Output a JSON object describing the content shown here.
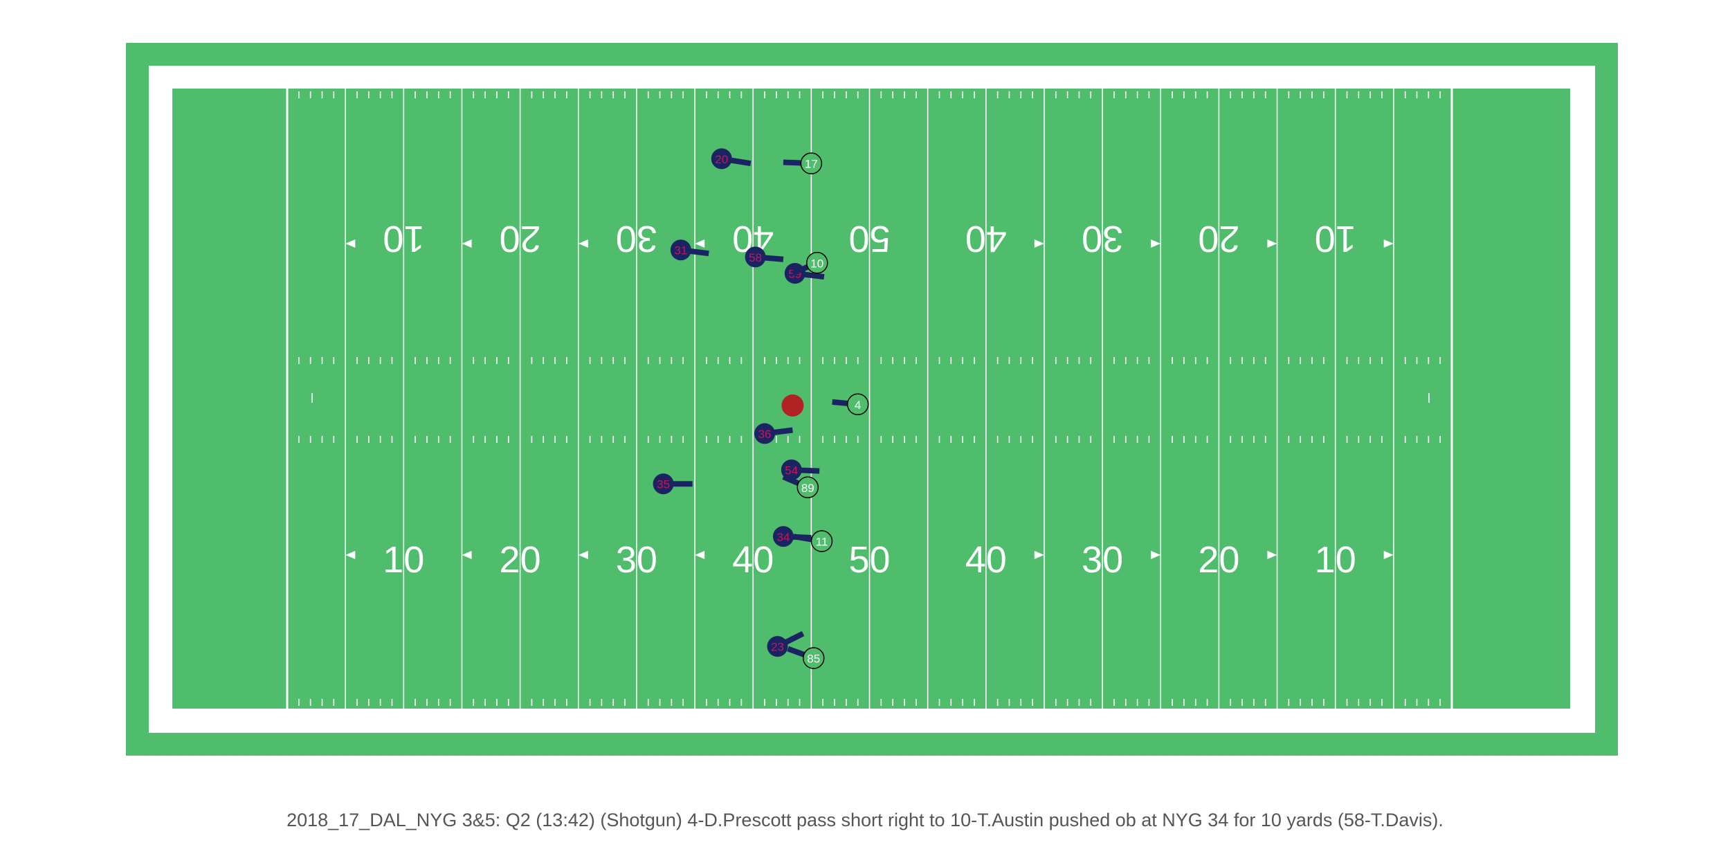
{
  "colors": {
    "field": "#50bd6c",
    "lines": "#ffffff",
    "defense_fill": "#1b2463",
    "defense_text": "#c2185b",
    "offense_text": "#ffffff",
    "offense_stroke": "#000000",
    "football": "#b22222"
  },
  "yard_numbers": {
    "top": [
      "10",
      "20",
      "30",
      "40",
      "50",
      "40",
      "30",
      "20",
      "10"
    ],
    "bottom": [
      "10",
      "20",
      "30",
      "40",
      "50",
      "40",
      "30",
      "20",
      "10"
    ]
  },
  "players": {
    "offense": [
      {
        "jersey": "17",
        "x": 45.0,
        "y": 46.9,
        "dx": -2.4,
        "dy": 0.1
      },
      {
        "jersey": "10",
        "x": 45.5,
        "y": 38.4,
        "dx": -2.1,
        "dy": -0.9
      },
      {
        "jersey": "4",
        "x": 49.0,
        "y": 26.3,
        "dx": -2.2,
        "dy": 0.2
      },
      {
        "jersey": "89",
        "x": 44.7,
        "y": 19.2,
        "dx": -2.1,
        "dy": 0.9
      },
      {
        "jersey": "11",
        "x": 45.9,
        "y": 14.6,
        "dx": -2.4,
        "dy": 0.4
      },
      {
        "jersey": "85",
        "x": 45.2,
        "y": 4.6,
        "dx": -2.2,
        "dy": 0.8
      }
    ],
    "defense": [
      {
        "jersey": "20",
        "x": 37.3,
        "y": 47.3,
        "dx": 2.5,
        "dy": -0.4
      },
      {
        "jersey": "31",
        "x": 33.8,
        "y": 39.5,
        "dx": 2.4,
        "dy": -0.3
      },
      {
        "jersey": "58",
        "x": 40.2,
        "y": 38.9,
        "dx": 2.4,
        "dy": -0.2
      },
      {
        "jersey": "59",
        "x": 43.6,
        "y": 37.5,
        "dx": 2.5,
        "dy": -0.3
      },
      {
        "jersey": "36",
        "x": 41.0,
        "y": 23.8,
        "dx": 2.4,
        "dy": 0.3
      },
      {
        "jersey": "54",
        "x": 43.3,
        "y": 20.7,
        "dx": 2.4,
        "dy": -0.1
      },
      {
        "jersey": "35",
        "x": 32.3,
        "y": 19.5,
        "dx": 2.5,
        "dy": 0
      },
      {
        "jersey": "34",
        "x": 42.6,
        "y": 15.0,
        "dx": 2.4,
        "dy": -0.1
      },
      {
        "jersey": "23",
        "x": 42.1,
        "y": 5.6,
        "dx": 2.2,
        "dy": 1.1
      }
    ]
  },
  "football": {
    "x": 43.4,
    "y": 26.2
  },
  "caption": "2018_17_DAL_NYG 3&5: Q2 (13:42) (Shotgun) 4-D.Prescott pass short right to 10-T.Austin pushed ob at NYG 34 for 10 yards (58-T.Davis)."
}
